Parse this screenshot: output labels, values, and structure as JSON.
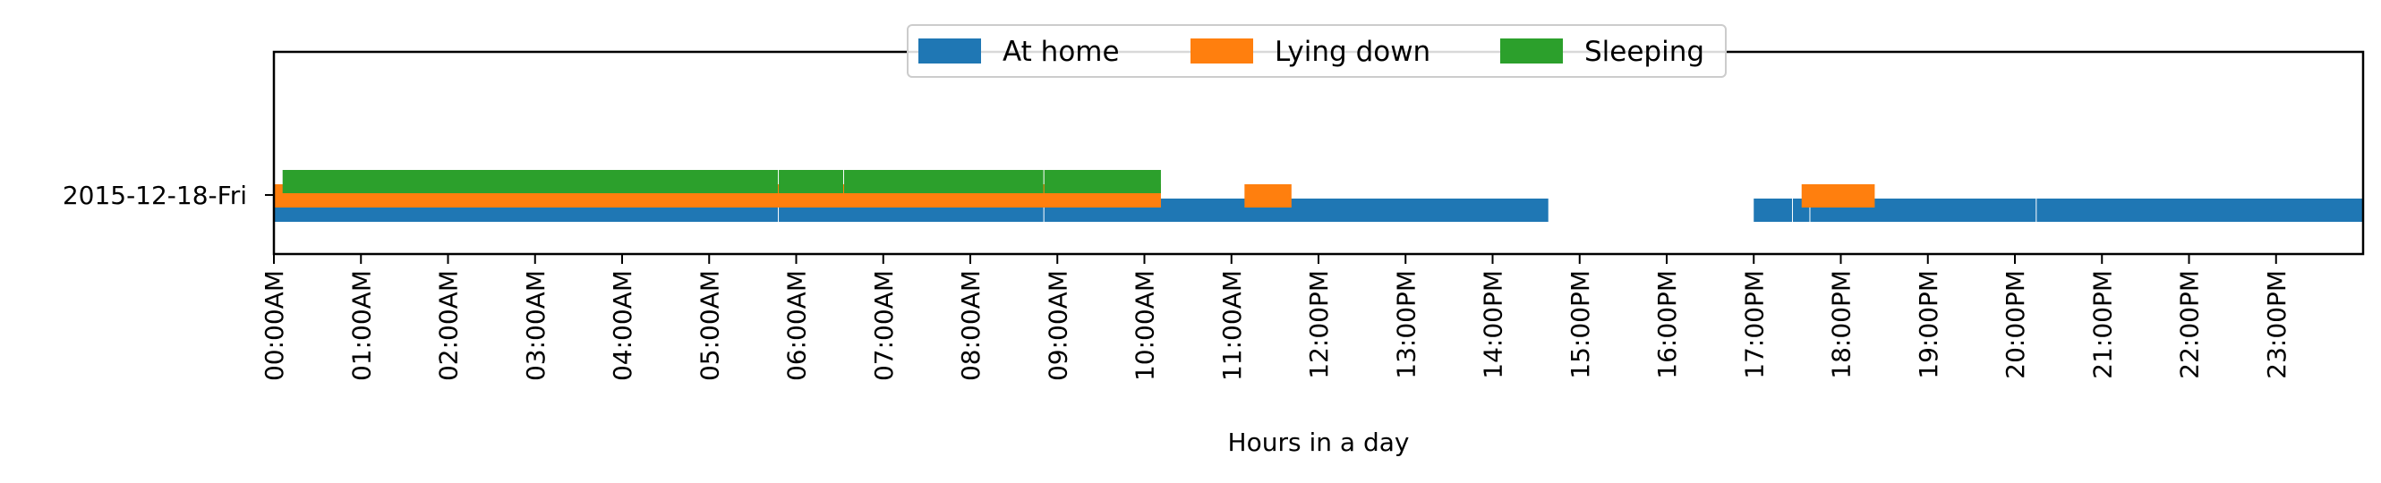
{
  "chart_data": {
    "type": "timeline",
    "title": "",
    "xlabel": "Hours in a day",
    "ylabel": "",
    "xlim": [
      0,
      24
    ],
    "row_label": "2015-12-18-Fri",
    "x_tick_labels": [
      "00:00AM",
      "01:00AM",
      "02:00AM",
      "03:00AM",
      "04:00AM",
      "05:00AM",
      "06:00AM",
      "07:00AM",
      "08:00AM",
      "09:00AM",
      "10:00AM",
      "11:00AM",
      "12:00PM",
      "13:00PM",
      "14:00PM",
      "15:00PM",
      "16:00PM",
      "17:00PM",
      "18:00PM",
      "19:00PM",
      "20:00PM",
      "21:00PM",
      "22:00PM",
      "23:00PM"
    ],
    "x_tick_rotation": 90,
    "grid": false,
    "legend_position": "top-center",
    "series": [
      {
        "name": "At home",
        "color": "#1f77b4",
        "intervals": [
          [
            0.0,
            5.8
          ],
          [
            5.8,
            8.85
          ],
          [
            8.85,
            14.65
          ],
          [
            17.0,
            17.45
          ],
          [
            17.45,
            17.65
          ],
          [
            17.65,
            20.25
          ],
          [
            20.25,
            24.0
          ]
        ]
      },
      {
        "name": "Lying down",
        "color": "#ff7f0e",
        "intervals": [
          [
            0.0,
            10.2
          ],
          [
            11.15,
            11.7
          ],
          [
            17.55,
            18.4
          ]
        ]
      },
      {
        "name": "Sleeping",
        "color": "#2ca02c",
        "intervals": [
          [
            0.1,
            5.8
          ],
          [
            5.8,
            6.55
          ],
          [
            6.55,
            8.85
          ],
          [
            8.85,
            10.2
          ]
        ]
      }
    ]
  }
}
